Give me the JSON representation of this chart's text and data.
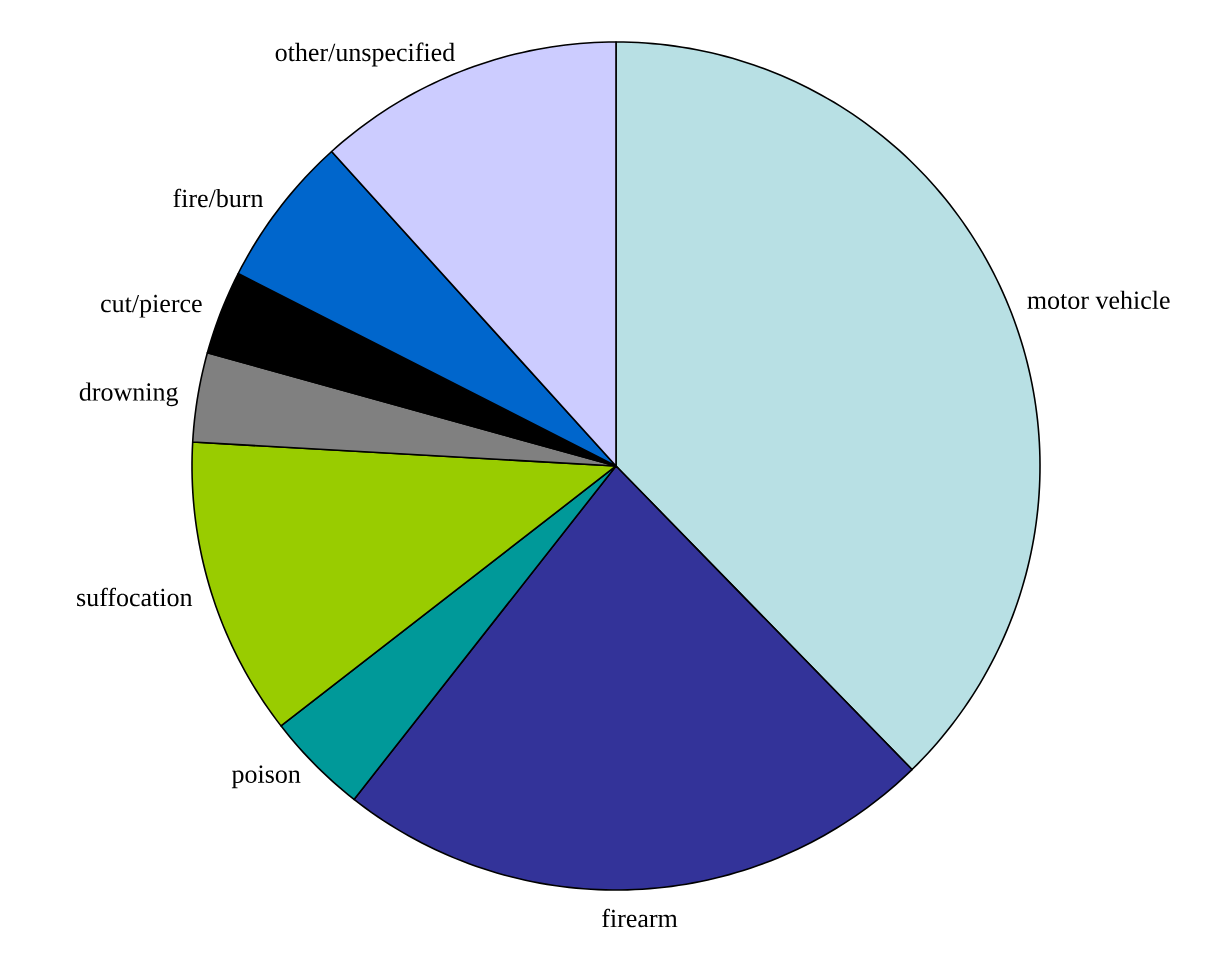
{
  "chart_data": {
    "type": "pie",
    "categories": [
      "motor vehicle",
      "firearm",
      "poison",
      "suffocation",
      "drowning",
      "cut/pierce",
      "fire/burn",
      "other/unspecified"
    ],
    "values": [
      37.7,
      22.9,
      3.9,
      11.4,
      3.4,
      3.2,
      5.8,
      11.7
    ],
    "colors": [
      "#b8e0e4",
      "#333399",
      "#009999",
      "#99cc00",
      "#808080",
      "#000000",
      "#0066cc",
      "#ccccff"
    ]
  }
}
